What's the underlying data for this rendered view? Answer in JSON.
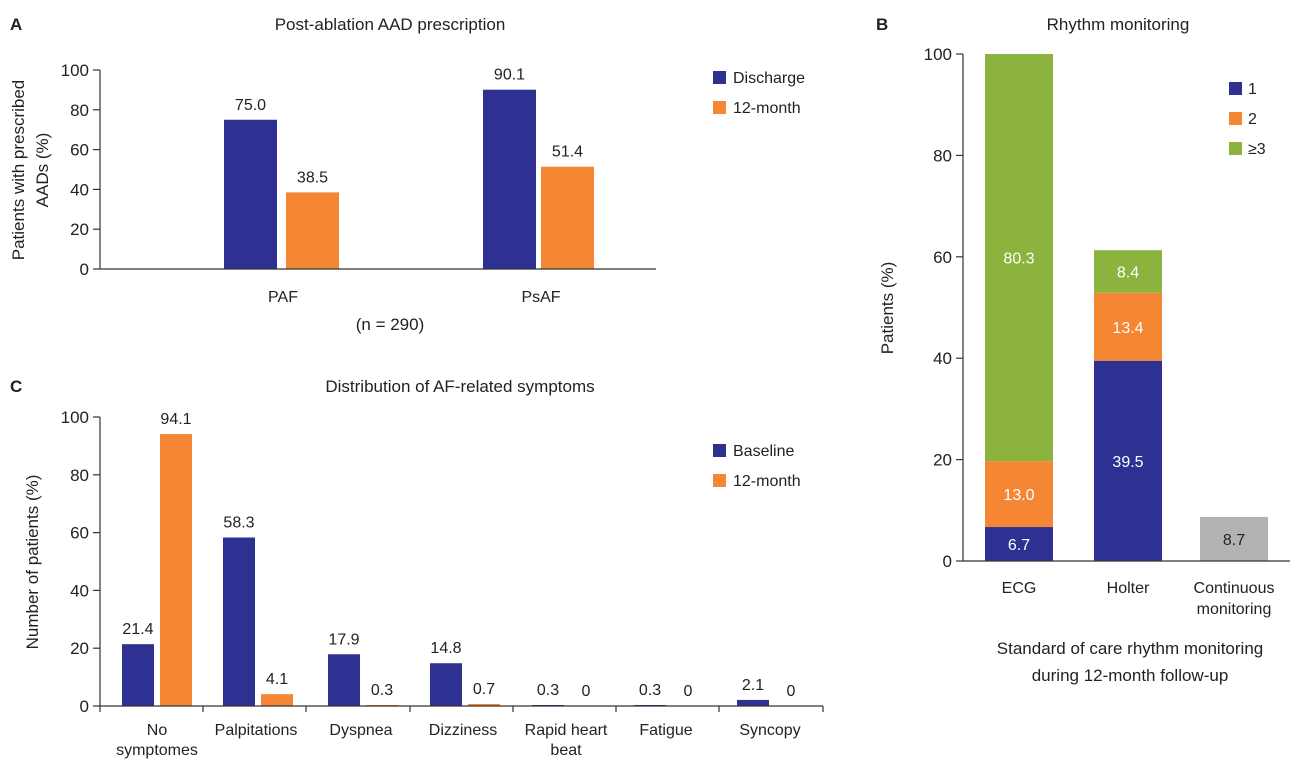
{
  "colors": {
    "blue": "#2e3192",
    "orange": "#f58634",
    "green": "#8db33f",
    "gray": "#b3b3b3"
  },
  "chart_data": [
    {
      "panel": "A",
      "type": "bar",
      "title": "Post-ablation AAD prescription",
      "ylabel": [
        "Patients with prescribed",
        "AADs (%)"
      ],
      "xlabel": "",
      "ylim": [
        0,
        100
      ],
      "yticks": [
        0,
        20,
        40,
        60,
        80,
        100
      ],
      "categories": [
        "PAF",
        "PsAF"
      ],
      "series": [
        {
          "name": "Discharge",
          "values": [
            75.0,
            90.1
          ],
          "labels": [
            "75.0",
            "90.1"
          ]
        },
        {
          "name": "12-month",
          "values": [
            38.5,
            51.4
          ],
          "labels": [
            "38.5",
            "51.4"
          ]
        }
      ],
      "note": "(n = 290)",
      "legend_position": "top-right"
    },
    {
      "panel": "B",
      "type": "bar",
      "stacked": true,
      "title": "Rhythm monitoring",
      "ylabel": "Patients (%)",
      "ylim": [
        0,
        100
      ],
      "yticks": [
        0,
        20,
        40,
        60,
        80,
        100
      ],
      "categories": [
        [
          "ECG"
        ],
        [
          "Holter"
        ],
        [
          "Continuous",
          "monitoring"
        ]
      ],
      "series": [
        {
          "name": "1",
          "values": [
            6.7,
            39.5,
            null
          ],
          "labels": [
            "6.7",
            "39.5",
            ""
          ]
        },
        {
          "name": "2",
          "values": [
            13.0,
            13.4,
            null
          ],
          "labels": [
            "13.0",
            "13.4",
            ""
          ]
        },
        {
          "name": "≥3",
          "values": [
            80.3,
            8.4,
            null
          ],
          "labels": [
            "80.3",
            "8.4",
            ""
          ]
        },
        {
          "values": [
            null,
            null,
            8.7
          ],
          "labels": [
            "",
            "",
            "8.7"
          ]
        }
      ],
      "caption": [
        "Standard of care rhythm monitoring",
        "during 12-month follow-up"
      ],
      "legend_position": "top-right"
    },
    {
      "panel": "C",
      "type": "bar",
      "title": "Distribution of AF-related symptoms",
      "ylabel": "Number of patients (%)",
      "ylim": [
        0,
        100
      ],
      "yticks": [
        0,
        20,
        40,
        60,
        80,
        100
      ],
      "categories": [
        [
          "No",
          "symptomes"
        ],
        [
          "Palpitations"
        ],
        [
          "Dyspnea"
        ],
        [
          "Dizziness"
        ],
        [
          "Rapid heart",
          "beat"
        ],
        [
          "Fatigue"
        ],
        [
          "Syncopy"
        ]
      ],
      "series": [
        {
          "name": "Baseline",
          "values": [
            21.4,
            58.3,
            17.9,
            14.8,
            0.3,
            0.3,
            2.1
          ],
          "labels": [
            "21.4",
            "58.3",
            "17.9",
            "14.8",
            "0.3",
            "0.3",
            "2.1"
          ]
        },
        {
          "name": "12-month",
          "values": [
            94.1,
            4.1,
            0.3,
            0.7,
            0,
            0,
            0
          ],
          "labels": [
            "94.1",
            "4.1",
            "0.3",
            "0.7",
            "0",
            "0",
            "0"
          ]
        }
      ],
      "legend_position": "top-right"
    }
  ]
}
